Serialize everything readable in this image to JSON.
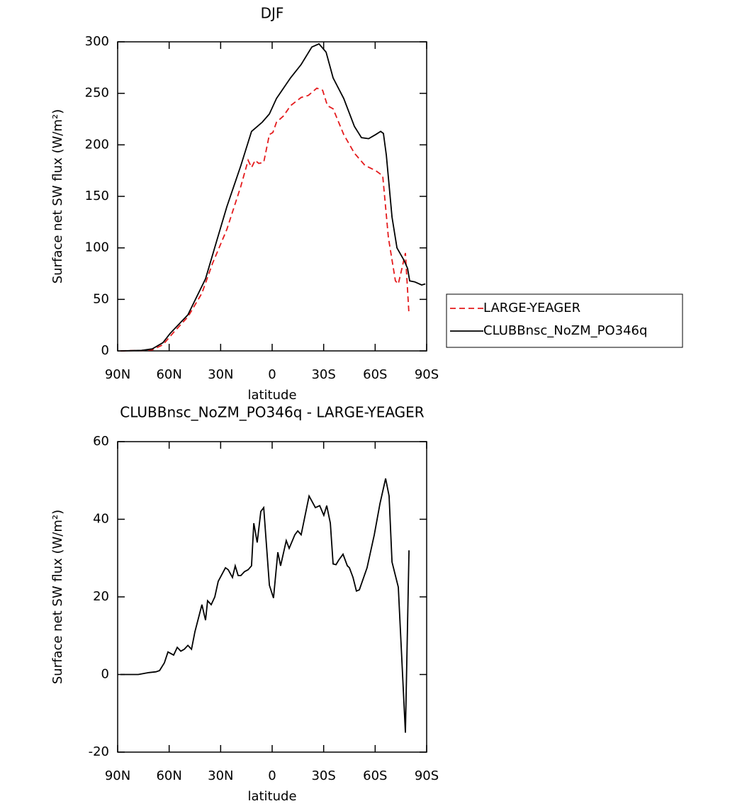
{
  "chart_data": [
    {
      "type": "line",
      "title": "DJF",
      "xlabel": "latitude",
      "ylabel": "Surface net SW flux (W/m²)",
      "xlim": [
        90,
        -90
      ],
      "xticks": [
        {
          "value": 90,
          "label": "90N"
        },
        {
          "value": 60,
          "label": "60N"
        },
        {
          "value": 30,
          "label": "30N"
        },
        0,
        {
          "value": -30,
          "label": "30S"
        },
        {
          "value": -60,
          "label": "60S"
        },
        {
          "value": -90,
          "label": "90S"
        }
      ],
      "ylim": [
        0,
        300
      ],
      "yticks": [
        0,
        50,
        100,
        150,
        200,
        250,
        300
      ],
      "legend": "right",
      "series": [
        {
          "name": "LARGE-YEAGER",
          "color": "#e41a1c",
          "style": "dashed",
          "x": [
            88.3,
            76.0,
            69.8,
            63.6,
            57.4,
            49.1,
            40.9,
            34.7,
            26.4,
            18.2,
            14.0,
            12.0,
            9.9,
            7.8,
            4.9,
            1.6,
            -0.4,
            -2.5,
            -6.6,
            -10.7,
            -16.9,
            -21.1,
            -26.0,
            -29.4,
            -32.2,
            -35.5,
            -41.7,
            -47.9,
            -54.1,
            -60.3,
            -64.4,
            -67.7,
            -71.8,
            -73.5,
            -75.6,
            -77.6,
            -79.7
          ],
          "values": [
            0,
            0.5,
            1,
            6,
            18,
            33,
            56,
            85,
            118,
            160,
            185,
            178,
            185,
            182,
            183,
            210,
            212,
            222,
            228,
            238,
            246,
            248,
            255,
            253,
            238,
            235,
            210,
            192,
            180,
            175,
            170,
            110,
            68,
            65,
            80,
            95,
            35
          ]
        },
        {
          "name": "CLUBBnsc_NoZM_PO346q",
          "color": "#000000",
          "style": "solid",
          "x": [
            88.3,
            76.0,
            69.8,
            63.6,
            59.4,
            49.1,
            38.8,
            32.6,
            26.4,
            18.2,
            12.0,
            5.8,
            1.6,
            -2.5,
            -10.7,
            -16.9,
            -23.1,
            -27.3,
            -31.4,
            -35.5,
            -41.7,
            -47.9,
            -52.0,
            -56.2,
            -60.3,
            -63.2,
            -64.8,
            -66.5,
            -69.8,
            -72.7,
            -76.8,
            -78.9,
            -80.1,
            -83.0,
            -87.1,
            -89.2
          ],
          "values": [
            0,
            0.5,
            2,
            8,
            17,
            35,
            70,
            105,
            140,
            180,
            213,
            222,
            230,
            245,
            265,
            278,
            295,
            298,
            290,
            265,
            245,
            218,
            207,
            206,
            210,
            213,
            211,
            190,
            130,
            100,
            88,
            80,
            68,
            67,
            64,
            65
          ]
        }
      ]
    },
    {
      "type": "line",
      "title": "CLUBBnsc_NoZM_PO346q - LARGE-YEAGER",
      "xlabel": "latitude",
      "ylabel": "Surface net SW flux (W/m²)",
      "xlim": [
        90,
        -90
      ],
      "xticks": [
        {
          "value": 90,
          "label": "90N"
        },
        {
          "value": 60,
          "label": "60N"
        },
        {
          "value": 30,
          "label": "30N"
        },
        0,
        {
          "value": -30,
          "label": "30S"
        },
        {
          "value": -60,
          "label": "60S"
        },
        {
          "value": -90,
          "label": "90S"
        }
      ],
      "ylim": [
        -20,
        60
      ],
      "yticks": [
        -20,
        0,
        20,
        40,
        60
      ],
      "color": "#000000",
      "x": [
        88.3,
        78.0,
        71.8,
        67.7,
        65.6,
        62.8,
        60.7,
        57.4,
        55.3,
        53.2,
        51.2,
        49.1,
        47.0,
        45.0,
        40.9,
        38.8,
        37.6,
        35.5,
        33.4,
        31.4,
        27.2,
        25.6,
        23.1,
        21.5,
        19.8,
        18.2,
        16.1,
        14.0,
        12.0,
        10.7,
        8.7,
        6.6,
        4.9,
        1.6,
        -0.8,
        -3.3,
        -4.9,
        -8.2,
        -9.9,
        -13.2,
        -14.9,
        -16.9,
        -21.5,
        -25.2,
        -27.7,
        -30.1,
        -31.8,
        -33.9,
        -35.5,
        -37.2,
        -38.8,
        -41.3,
        -43.8,
        -45.0,
        -47.1,
        -49.1,
        -50.8,
        -55.3,
        -59.5,
        -62.8,
        -66.1,
        -68.1,
        -69.8,
        -73.5,
        -77.6,
        -79.7
      ],
      "values": [
        0,
        0,
        0.5,
        0.7,
        1,
        3,
        5.8,
        5,
        7,
        6,
        6.5,
        7.5,
        6.5,
        11,
        18,
        14,
        19,
        18,
        20,
        24,
        27.5,
        27,
        25,
        28,
        25.5,
        25.5,
        26.5,
        27,
        28,
        39,
        34,
        42,
        43,
        23,
        19.7,
        31.5,
        28,
        34.5,
        32.5,
        36,
        37,
        36,
        46,
        43,
        43.5,
        41,
        43.5,
        39,
        28.5,
        28.3,
        29.5,
        31,
        28,
        27.5,
        25,
        21.5,
        21.8,
        27.5,
        36,
        44,
        50.5,
        46,
        29,
        22.5,
        -15,
        32
      ]
    }
  ]
}
